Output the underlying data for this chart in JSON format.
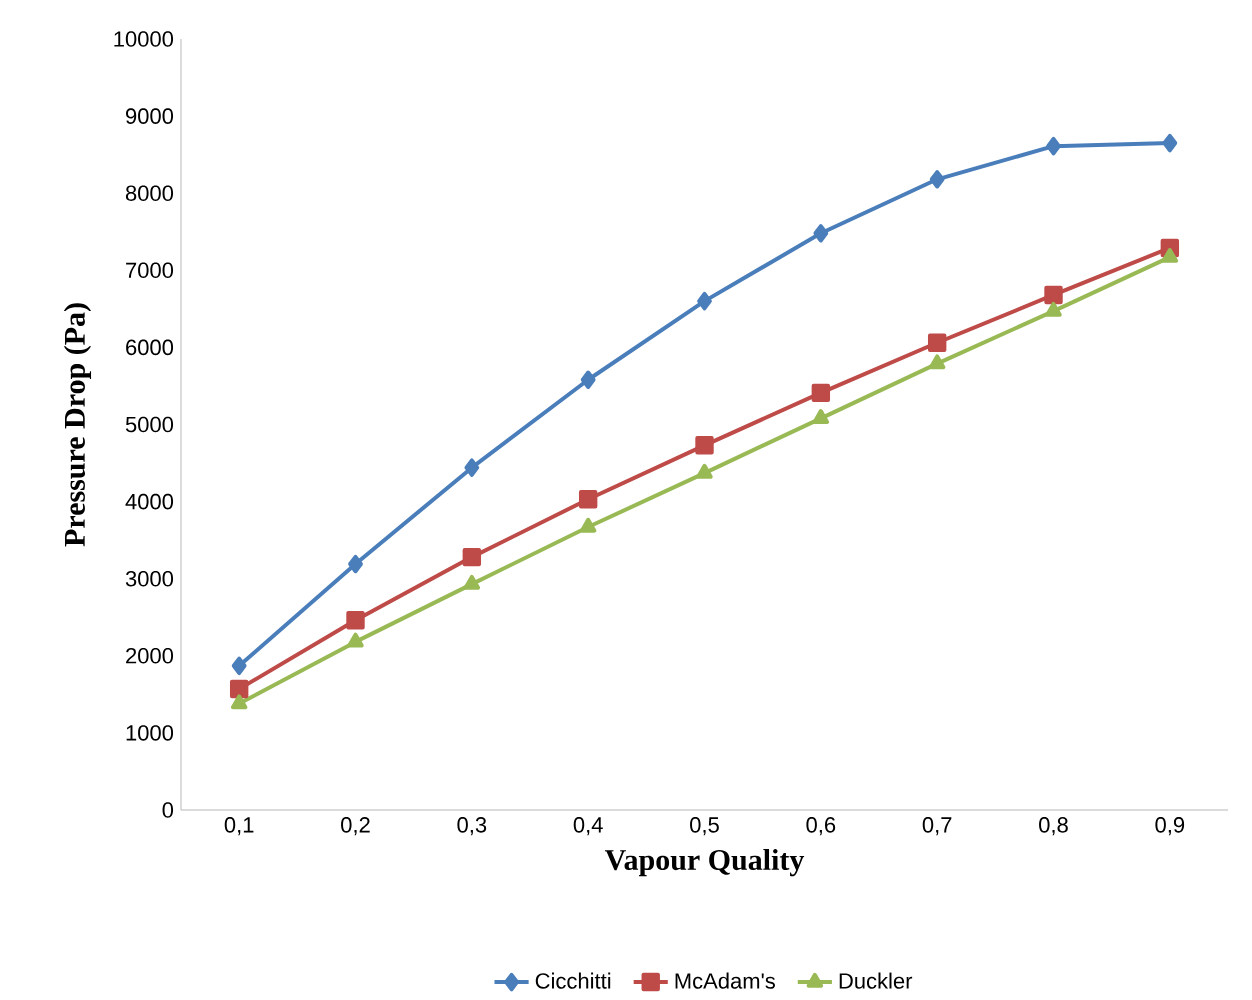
{
  "chart_data": {
    "type": "line",
    "xlabel": "Vapour Quality",
    "ylabel": "Pressure Drop (Pa)",
    "categories": [
      "0,1",
      "0,2",
      "0,3",
      "0,4",
      "0,5",
      "0,6",
      "0,7",
      "0,8",
      "0,9"
    ],
    "series": [
      {
        "name": "Cicchitti",
        "color": "#4a7ebb",
        "marker": "diamond",
        "values": [
          1870,
          3190,
          4440,
          5580,
          6600,
          7480,
          8180,
          8610,
          8650
        ]
      },
      {
        "name": "McAdam's",
        "color": "#be4b48",
        "marker": "square",
        "values": [
          1570,
          2460,
          3280,
          4030,
          4730,
          5410,
          6060,
          6680,
          7290
        ]
      },
      {
        "name": "Duckler",
        "color": "#98b954",
        "marker": "triangle",
        "values": [
          1380,
          2180,
          2930,
          3670,
          4370,
          5080,
          5790,
          6470,
          7170
        ]
      }
    ],
    "ylim": [
      0,
      10000
    ],
    "yticks": [
      0,
      1000,
      2000,
      3000,
      4000,
      5000,
      6000,
      7000,
      8000,
      9000,
      10000
    ],
    "grid": false,
    "legend": "bottom",
    "line_style": "solid"
  }
}
